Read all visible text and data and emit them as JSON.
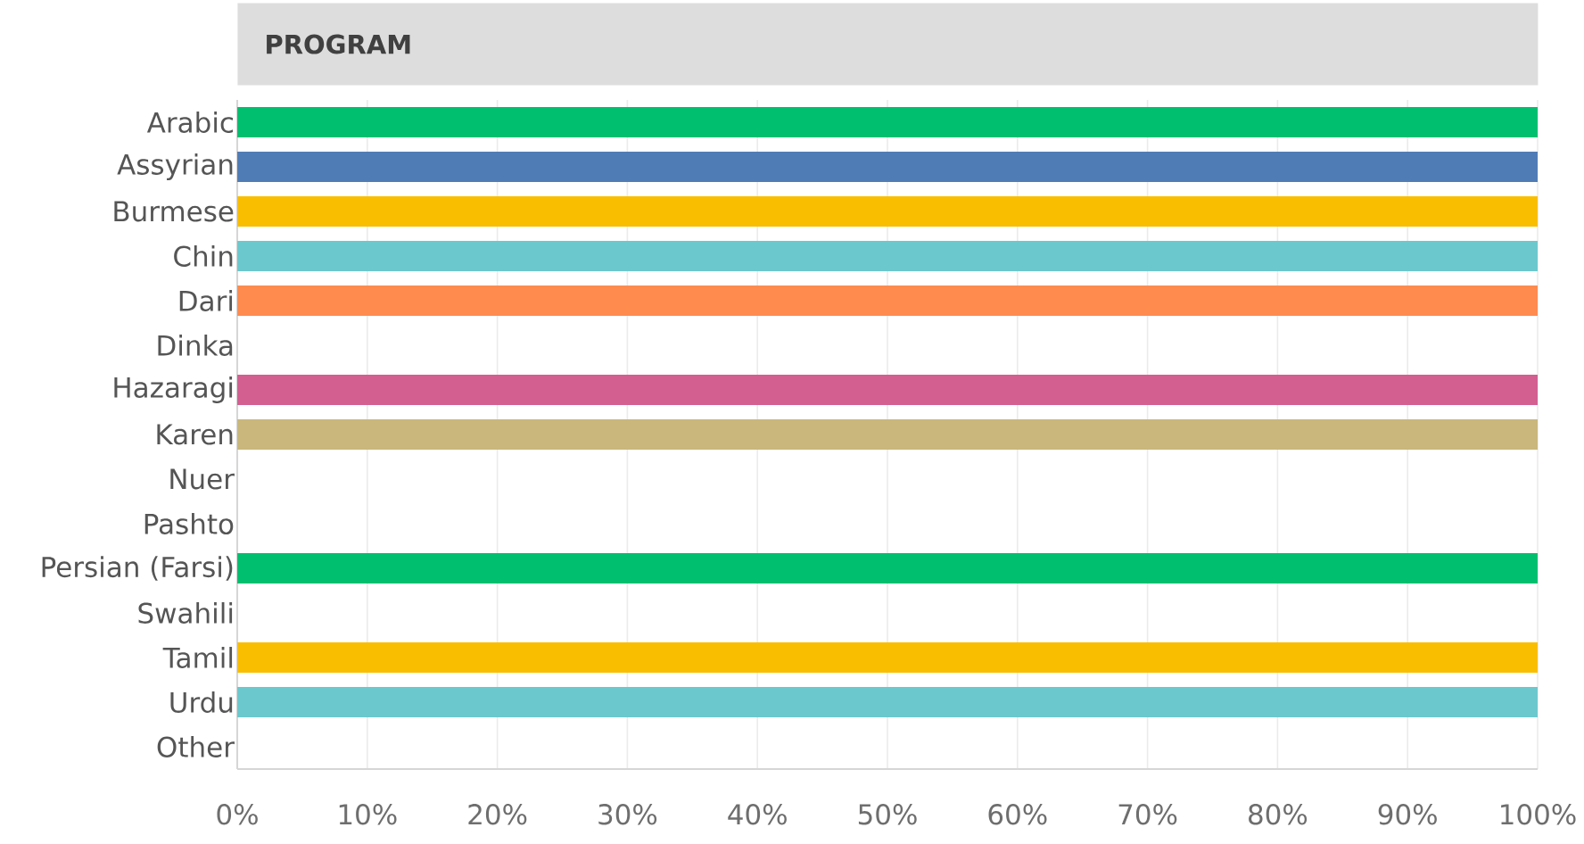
{
  "chart_data": {
    "type": "bar",
    "orientation": "horizontal",
    "title": "PROGRAM",
    "categories": [
      "Arabic",
      "Assyrian",
      "Burmese",
      "Chin",
      "Dari",
      "Dinka",
      "Hazaragi",
      "Karen",
      "Nuer",
      "Pashto",
      "Persian (Farsi)",
      "Swahili",
      "Tamil",
      "Urdu",
      "Other"
    ],
    "values": [
      100,
      100,
      100,
      100,
      100,
      0,
      100,
      100,
      0,
      0,
      100,
      0,
      100,
      100,
      0
    ],
    "colors": [
      "#00bf6f",
      "#507cb6",
      "#f9be00",
      "#6bc8cd",
      "#ff8b4f",
      null,
      "#d25f90",
      "#c9b77b",
      null,
      null,
      "#00bf6f",
      null,
      "#f9be00",
      "#6bc8cd",
      null
    ],
    "xlim": [
      0,
      100
    ],
    "xticks": [
      {
        "value": 0,
        "label": "0%"
      },
      {
        "value": 10,
        "label": "10%"
      },
      {
        "value": 20,
        "label": "20%"
      },
      {
        "value": 30,
        "label": "30%"
      },
      {
        "value": 40,
        "label": "40%"
      },
      {
        "value": 50,
        "label": "50%"
      },
      {
        "value": 60,
        "label": "60%"
      },
      {
        "value": 70,
        "label": "70%"
      },
      {
        "value": 80,
        "label": "80%"
      },
      {
        "value": 90,
        "label": "90%"
      },
      {
        "value": 100,
        "label": "100%"
      }
    ],
    "grid": "x"
  }
}
